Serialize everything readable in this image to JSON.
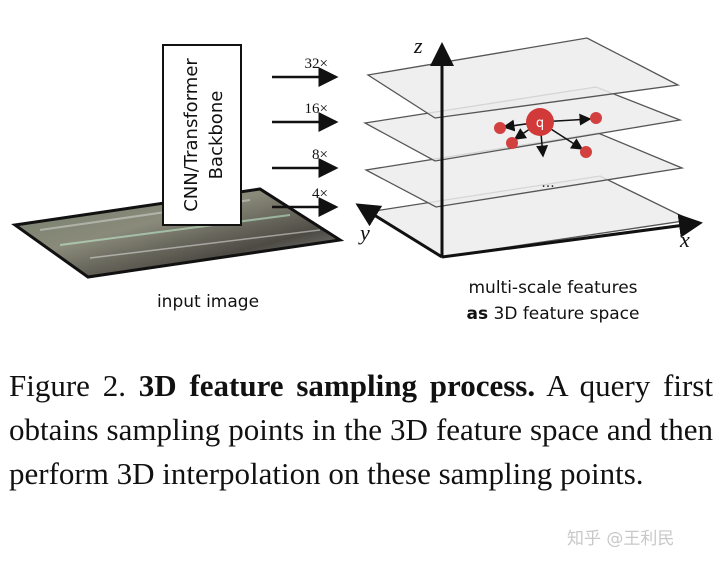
{
  "figure": {
    "backbone_label_line1": "CNN/Transformer",
    "backbone_label_line2": "Backbone",
    "scales": [
      "32×",
      "16×",
      "8×",
      "4×"
    ],
    "input_label": "input image",
    "feature_label_line1": "multi-scale features",
    "feature_label_bold": "as",
    "feature_label_rest": " 3D feature space",
    "axes": {
      "x": "x",
      "y": "y",
      "z": "z"
    },
    "query_label": "q",
    "ellipsis": "...",
    "colors": {
      "query": "#d23a3a",
      "sample_point": "#d24040",
      "plane_fill": "#ececec"
    }
  },
  "caption": {
    "prefix": "Figure 2. ",
    "title": "3D feature sampling process.",
    "body": " A query first obtains sampling points in the 3D feature space and then perform 3D interpolation on these sampling points."
  },
  "watermark": "知乎 @王利民"
}
